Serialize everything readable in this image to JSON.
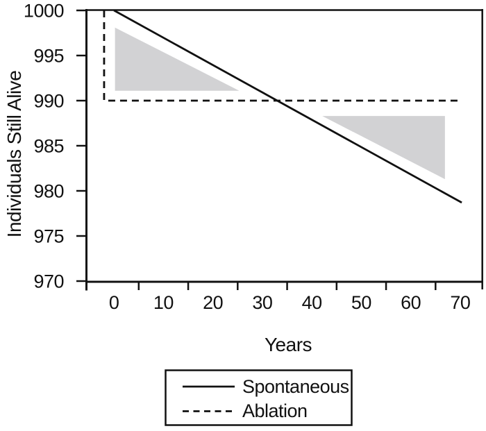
{
  "figure": {
    "background": "#ffffff",
    "line_color": "#111111",
    "shade_color": "#d2d2d4"
  },
  "chart_data": {
    "type": "line",
    "title": "",
    "xlabel": "Years",
    "ylabel": "Individuals Still Alive",
    "xlim": [
      -5.5,
      74.5
    ],
    "ylim": [
      970,
      1000
    ],
    "grid": false,
    "x_tick_labels": [
      0,
      10,
      20,
      30,
      40,
      50,
      60,
      70
    ],
    "x_minor_ticks": [
      5,
      15,
      25,
      35,
      45,
      55,
      65
    ],
    "y_tick_labels": [
      1000,
      995,
      990,
      985,
      980,
      975,
      970
    ],
    "series": [
      {
        "name": "Spontaneous",
        "style": "solid",
        "points": [
          [
            0,
            1000
          ],
          [
            70.3,
            978.7
          ]
        ]
      },
      {
        "name": "Ablation",
        "style": "dashed",
        "points": [
          [
            -2,
            1000
          ],
          [
            -2,
            990
          ],
          [
            70.3,
            990
          ]
        ]
      }
    ],
    "shaded_regions": [
      {
        "name": "excess-deaths-spontaneous-early",
        "points": [
          [
            0.2,
            998.1
          ],
          [
            0.2,
            991.1
          ],
          [
            25.3,
            991.1
          ]
        ]
      },
      {
        "name": "excess-deaths-ablation-late",
        "points": [
          [
            42.1,
            988.3
          ],
          [
            66.9,
            988.3
          ],
          [
            66.9,
            981.3
          ]
        ]
      }
    ],
    "legend": {
      "position": "bottom-center",
      "entries": [
        {
          "label": "Spontaneous",
          "style": "solid"
        },
        {
          "label": "Ablation",
          "style": "dashed"
        }
      ]
    }
  }
}
